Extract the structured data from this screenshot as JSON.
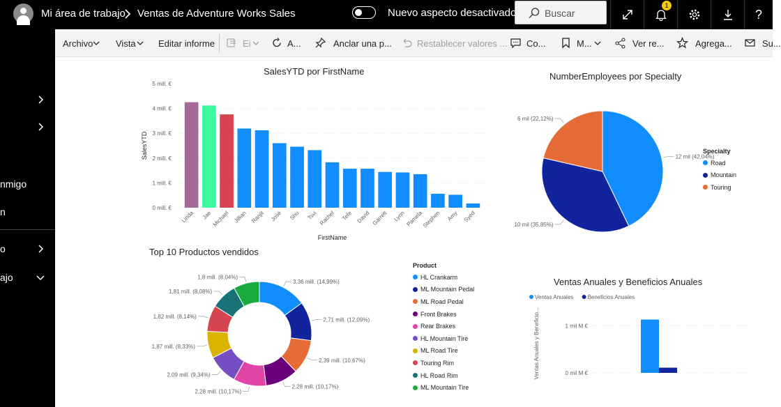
{
  "header": {
    "workspace": "Mi área de trabajo",
    "report": "Ventas de Adventure Works Sales",
    "toggle_label": "Nuevo aspecto desactivado",
    "search_placeholder": "Buscar",
    "notification_count": "1",
    "help_label": "?"
  },
  "leftnav": {
    "items": [
      {
        "label": "nmigo"
      },
      {
        "label": "n"
      },
      {
        "label": "o"
      },
      {
        "label": "ajo"
      }
    ]
  },
  "commandbar": {
    "file": "Archivo",
    "view": "Vista",
    "edit": "Editar informe",
    "export": "Ei",
    "refresh": "A...",
    "pin": "Anclar una p...",
    "reset": "Restablecer valores ...",
    "comments": "Co...",
    "bookmarks": "M...",
    "share": "Ver re...",
    "favorite": "Agrega...",
    "subscribe": "Su..."
  },
  "chart_data": [
    {
      "type": "bar",
      "title": "SalesYTD por FirstName",
      "xlabel": "FirstName",
      "ylabel": "SalesYTD",
      "ylim": [
        0,
        5
      ],
      "yticks": [
        "0 mill. €",
        "1 mill. €",
        "2 mill. €",
        "3 mill. €",
        "4 mill. €",
        "5 mill. €"
      ],
      "categories": [
        "Linda",
        "Jae",
        "Michael",
        "Jillian",
        "Ranjit",
        "José",
        "Shu",
        "Tsvi",
        "Rachel",
        "Tete",
        "David",
        "Garrett",
        "Lynn",
        "Pamela",
        "Stephen",
        "Amy",
        "Syed"
      ],
      "values": [
        4.25,
        4.12,
        3.76,
        3.19,
        3.12,
        2.6,
        2.46,
        2.32,
        1.83,
        1.57,
        1.57,
        1.44,
        1.42,
        1.35,
        0.56,
        0.52,
        0.17
      ],
      "colors": [
        "#a66999",
        "#3bfa9f",
        "#d9434f",
        "#118dff",
        "#118dff",
        "#118dff",
        "#118dff",
        "#118dff",
        "#118dff",
        "#118dff",
        "#118dff",
        "#118dff",
        "#118dff",
        "#118dff",
        "#118dff",
        "#118dff",
        "#118dff"
      ],
      "grid": true
    },
    {
      "type": "pie",
      "title": "NumberEmployees por Specialty",
      "legend_title": "Specialty",
      "legend_position": "right",
      "categories": [
        "Road",
        "Mountain",
        "Touring"
      ],
      "values": [
        12,
        10,
        6
      ],
      "labels": [
        "12 mil (42,04%)",
        "10 mil (35,85%)",
        "6 mil (22,12%)"
      ],
      "colors": [
        "#118dff",
        "#12239e",
        "#e66c37"
      ]
    },
    {
      "type": "pie",
      "subtype": "donut",
      "title": "Top 10 Productos vendidos",
      "legend_title": "Product",
      "legend_position": "right",
      "categories": [
        "HL Crankarm",
        "ML Mountain Pedal",
        "ML Road Pedal",
        "Front Brakes",
        "Rear Brakes",
        "HL Mountain Tire",
        "ML Road Tire",
        "Touring Rim",
        "HL Road Rim",
        "ML Mountain Tire"
      ],
      "values": [
        3.36,
        2.71,
        2.39,
        2.28,
        2.28,
        2.09,
        1.87,
        1.82,
        1.81,
        1.8
      ],
      "labels": [
        "3,36 mill. (14,99%)",
        "2,71 mill. (12,09%)",
        "2,39 mill. (10,67%)",
        "2,28 mill. (10,17%)",
        "2,28 mill. (10,17%)",
        "2,09 mill. (9,34%)",
        "1,87 mill. (8,33%)",
        "1,82 mill. (8,14%)",
        "1,81 mill. (8,08%)",
        "1,8 mill. (8,04%)"
      ],
      "colors": [
        "#118dff",
        "#12239e",
        "#e66c37",
        "#6b007b",
        "#e044a7",
        "#744ec2",
        "#d9b300",
        "#d64550",
        "#197278",
        "#1aab40"
      ]
    },
    {
      "type": "bar",
      "title": "Ventas Anuales y Beneficios Anuales",
      "ylabel": "Ventas Anuales y Beneficio...",
      "ylim": [
        0,
        1.3
      ],
      "yticks": [
        "0 mil M €",
        "1 mil M €"
      ],
      "legend_position": "top-left",
      "series": [
        {
          "name": "Ventas Anuales",
          "values": [
            1.13
          ],
          "color": "#118dff"
        },
        {
          "name": "Beneficios Anuales",
          "values": [
            0.11
          ],
          "color": "#12239e"
        }
      ],
      "grid": true
    }
  ]
}
